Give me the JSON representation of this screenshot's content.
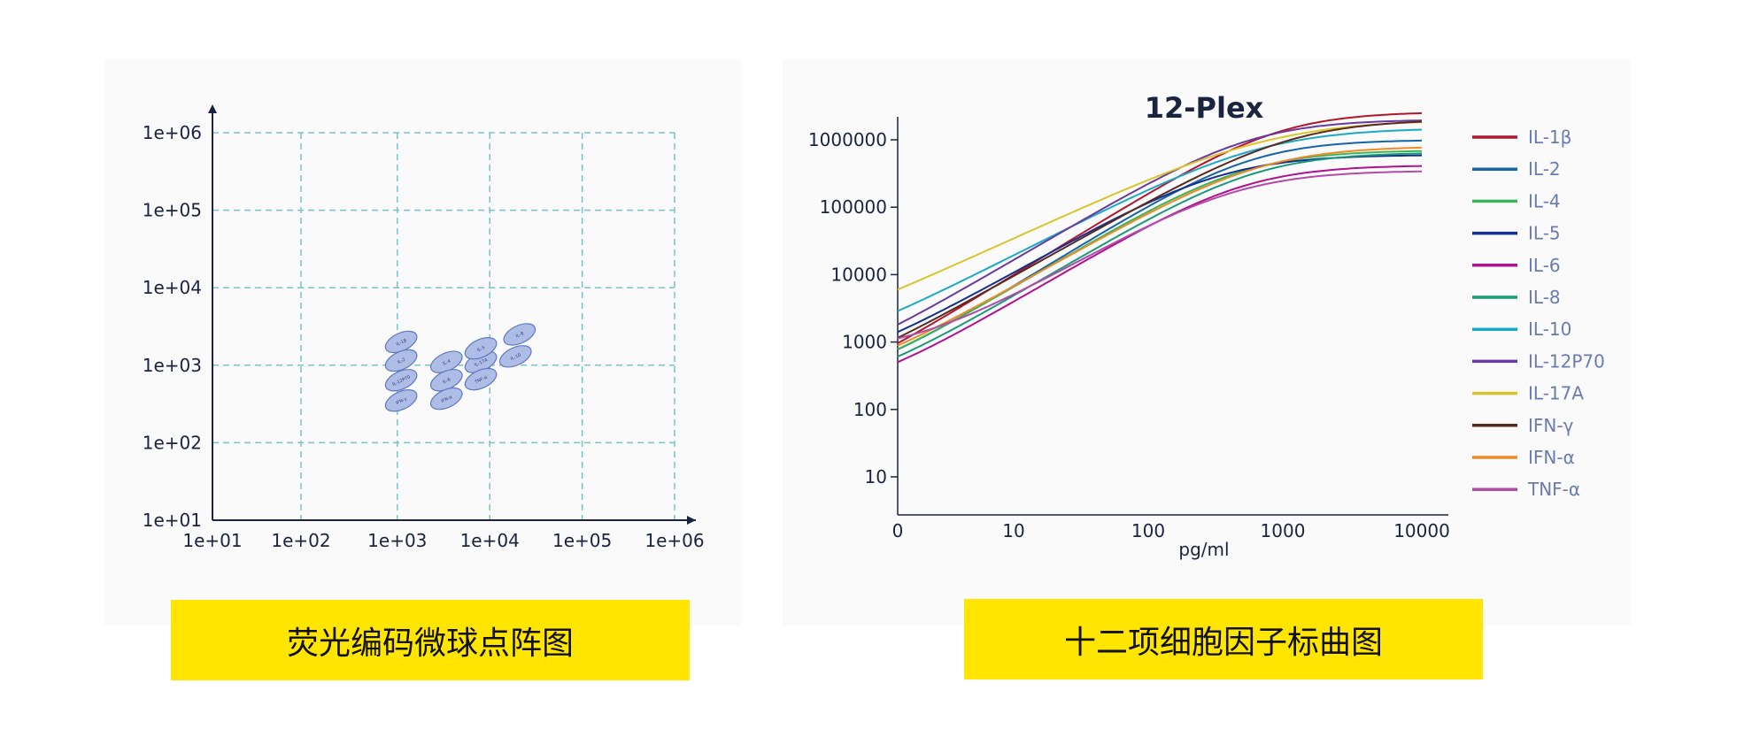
{
  "captions": {
    "left": "荧光编码微球点阵图",
    "right": "十二项细胞因子标曲图"
  },
  "colors": {
    "caption_bg": "#ffe500",
    "grid": "#79c2cc",
    "axis": "#1a2340",
    "bead_fill": "#aebde6",
    "bead_stroke": "#5f78bf"
  },
  "chart_data": [
    {
      "type": "scatter",
      "title": "",
      "xlabel": "",
      "ylabel": "",
      "x_scale": "log",
      "y_scale": "log",
      "xlim": [
        10,
        1000000
      ],
      "ylim": [
        10,
        1000000
      ],
      "grid": true,
      "x_ticks": [
        "1e+01",
        "1e+02",
        "1e+03",
        "1e+04",
        "1e+05",
        "1e+06"
      ],
      "y_ticks": [
        "1e+01",
        "1e+02",
        "1e+03",
        "1e+04",
        "1e+05",
        "1e+06"
      ],
      "beads": [
        {
          "label": "IL-1β",
          "x": 1100,
          "y": 2000
        },
        {
          "label": "IL-2",
          "x": 1100,
          "y": 1150
        },
        {
          "label": "IL-12P70",
          "x": 1100,
          "y": 640
        },
        {
          "label": "IFN-γ",
          "x": 1100,
          "y": 350
        },
        {
          "label": "IL-4",
          "x": 3400,
          "y": 1100
        },
        {
          "label": "IL-6",
          "x": 3400,
          "y": 640
        },
        {
          "label": "IFN-α",
          "x": 3400,
          "y": 370
        },
        {
          "label": "IL-17A",
          "x": 8000,
          "y": 1100
        },
        {
          "label": "IL-5",
          "x": 8000,
          "y": 1650
        },
        {
          "label": "TNF-α",
          "x": 8000,
          "y": 660
        },
        {
          "label": "IL-8",
          "x": 21000,
          "y": 2500
        },
        {
          "label": "IL-10",
          "x": 19000,
          "y": 1300
        }
      ]
    },
    {
      "type": "line",
      "title": "12-Plex",
      "xlabel": "pg/ml",
      "ylabel": "",
      "x_scale": "log",
      "y_scale": "log",
      "x_ticks": [
        "0",
        "10",
        "100",
        "1000",
        "10000"
      ],
      "y_ticks": [
        "10",
        "100",
        "1000",
        "10000",
        "100000",
        "1000000"
      ],
      "legend": "right",
      "series": [
        {
          "name": "IL-1β",
          "color": "#b5152b",
          "bottom": 105,
          "top": 2600000,
          "ec50": 800,
          "hill": 1.2
        },
        {
          "name": "IL-2",
          "color": "#1565a8",
          "bottom": 200,
          "top": 1000000,
          "ec50": 500,
          "hill": 1.2
        },
        {
          "name": "IL-4",
          "color": "#3cb55a",
          "bottom": 160,
          "top": 700000,
          "ec50": 450,
          "hill": 1.15
        },
        {
          "name": "IL-5",
          "color": "#12308f",
          "bottom": 280,
          "top": 600000,
          "ec50": 300,
          "hill": 1.1
        },
        {
          "name": "IL-6",
          "color": "#b0128f",
          "bottom": 130,
          "top": 420000,
          "ec50": 450,
          "hill": 1.15
        },
        {
          "name": "IL-8",
          "color": "#1a9a78",
          "bottom": 150,
          "top": 650000,
          "ec50": 550,
          "hill": 1.15
        },
        {
          "name": "IL-10",
          "color": "#1aaac6",
          "bottom": 380,
          "top": 1500000,
          "ec50": 600,
          "hill": 1.0
        },
        {
          "name": "IL-12P70",
          "color": "#6a3aa0",
          "bottom": 240,
          "top": 2000000,
          "ec50": 500,
          "hill": 1.15
        },
        {
          "name": "IL-17A",
          "color": "#d8c52a",
          "bottom": 520,
          "top": 2000000,
          "ec50": 700,
          "hill": 0.9
        },
        {
          "name": "IFN-γ",
          "color": "#5a2a1e",
          "bottom": 150,
          "top": 2000000,
          "ec50": 1000,
          "hill": 1.1
        },
        {
          "name": "IFN-α",
          "color": "#f08a24",
          "bottom": 180,
          "top": 800000,
          "ec50": 600,
          "hill": 1.1
        },
        {
          "name": "TNF-α",
          "color": "#b24aa8",
          "bottom": 650,
          "top": 350000,
          "ec50": 400,
          "hill": 1.1
        }
      ]
    }
  ]
}
